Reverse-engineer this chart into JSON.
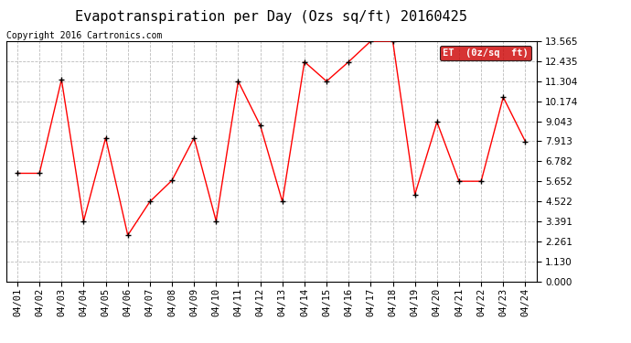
{
  "title": "Evapotranspiration per Day (Ozs sq/ft) 20160425",
  "copyright": "Copyright 2016 Cartronics.com",
  "legend_label": "ET  (0z/sq  ft)",
  "dates": [
    "04/01",
    "04/02",
    "04/03",
    "04/04",
    "04/05",
    "04/06",
    "04/07",
    "04/08",
    "04/09",
    "04/10",
    "04/11",
    "04/12",
    "04/13",
    "04/14",
    "04/15",
    "04/16",
    "04/17",
    "04/18",
    "04/19",
    "04/20",
    "04/21",
    "04/22",
    "04/23",
    "04/24"
  ],
  "values": [
    6.1,
    6.1,
    11.4,
    3.4,
    8.1,
    2.6,
    4.5,
    5.7,
    8.1,
    3.4,
    11.3,
    8.8,
    4.5,
    12.4,
    11.3,
    12.4,
    13.565,
    13.565,
    4.9,
    9.0,
    5.65,
    5.65,
    10.4,
    7.9
  ],
  "ylim": [
    0.0,
    13.565
  ],
  "yticks": [
    0.0,
    1.13,
    2.261,
    3.391,
    4.522,
    5.652,
    6.782,
    7.913,
    9.043,
    10.174,
    11.304,
    12.435,
    13.565
  ],
  "line_color": "red",
  "marker_color": "black",
  "background_color": "#ffffff",
  "grid_color": "#bbbbbb",
  "title_fontsize": 11,
  "copyright_fontsize": 7,
  "tick_fontsize": 7.5,
  "legend_bg": "#cc0000",
  "legend_text_color": "#ffffff",
  "fig_width": 6.9,
  "fig_height": 3.75,
  "dpi": 100
}
